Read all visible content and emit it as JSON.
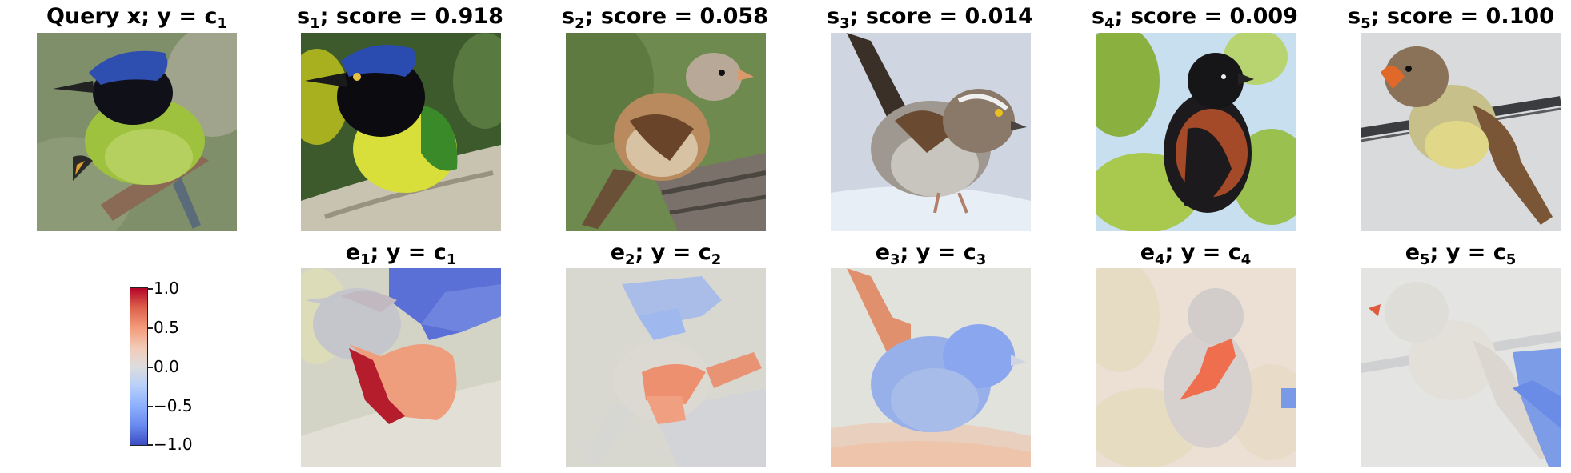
{
  "query": {
    "title": "Query x; y = c",
    "title_sub": "1"
  },
  "samples": [
    {
      "prefix": "s",
      "sub": "1",
      "rest": "; score = 0.918"
    },
    {
      "prefix": "s",
      "sub": "2",
      "rest": "; score = 0.058"
    },
    {
      "prefix": "s",
      "sub": "3",
      "rest": "; score = 0.014"
    },
    {
      "prefix": "s",
      "sub": "4",
      "rest": "; score = 0.009"
    },
    {
      "prefix": "s",
      "sub": "5",
      "rest": "; score = 0.100"
    }
  ],
  "explanations": [
    {
      "prefix": "e",
      "sub": "1",
      "mid": "; y = c",
      "sub2": "1"
    },
    {
      "prefix": "e",
      "sub": "2",
      "mid": "; y = c",
      "sub2": "2"
    },
    {
      "prefix": "e",
      "sub": "3",
      "mid": "; y = c",
      "sub2": "3"
    },
    {
      "prefix": "e",
      "sub": "4",
      "mid": "; y = c",
      "sub2": "4"
    },
    {
      "prefix": "e",
      "sub": "5",
      "mid": "; y = c",
      "sub2": "5"
    }
  ],
  "colorbar": {
    "ticks": [
      "1.0",
      "0.5",
      "0.0",
      "−0.5",
      "−1.0"
    ],
    "cmap": "coolwarm"
  }
}
